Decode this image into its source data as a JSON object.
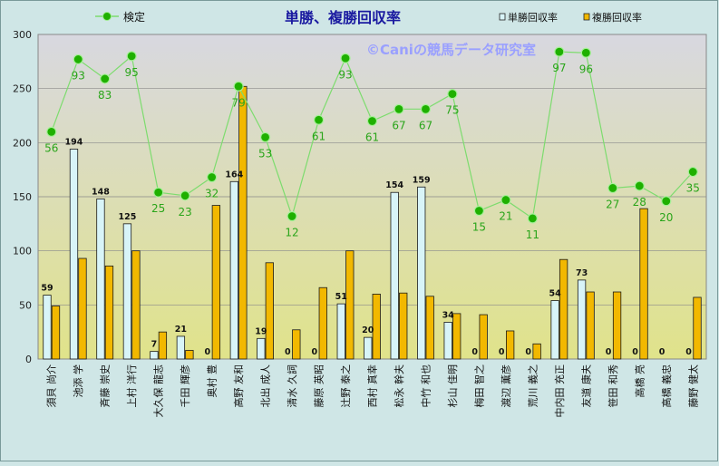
{
  "colors": {
    "background": "#cfe6e6",
    "plot_top": "#d8d8e0",
    "plot_bottom": "#e0e38a",
    "win_bar": "#d8f4f8",
    "place_bar": "#f2b800",
    "line": "#7ddc6e",
    "marker": "#1fb000",
    "line_label": "#2aa51a",
    "title": "#1a1aa0",
    "watermark": "#9aa0ff"
  },
  "chart_data": {
    "type": "bar",
    "title": "単勝、複勝回収率",
    "watermark": "©Caniの競馬データ研究室",
    "ylim": [
      0,
      300
    ],
    "yticks": [
      "0",
      "50",
      "100",
      "150",
      "200",
      "250",
      "300"
    ],
    "grid": true,
    "legend_left": "検定",
    "legend_right": [
      "単勝回収率",
      "複勝回収率"
    ],
    "categories": [
      "須貝 尚介",
      "池添 学",
      "斉藤 崇史",
      "上村 洋行",
      "大久保 龍志",
      "千田 輝彦",
      "奥村 豊",
      "高野 友和",
      "北出 成人",
      "清水 久詞",
      "藤原 英昭",
      "辻野 泰之",
      "西村 真幸",
      "松永 幹夫",
      "中竹 和也",
      "杉山 佳明",
      "梅田 智之",
      "渡辺 薫彦",
      "荒川 義之",
      "中内田 充正",
      "友道 康夫",
      "笹田 和秀",
      "高橋 亮",
      "高橋 義忠",
      "藤野 健太"
    ],
    "series": [
      {
        "name": "単勝回収率",
        "values": [
          59,
          194,
          148,
          125,
          7,
          21,
          0,
          164,
          19,
          0,
          0,
          51,
          20,
          154,
          159,
          34,
          0,
          0,
          0,
          54,
          73,
          0,
          0,
          0,
          0
        ],
        "labels": [
          "59",
          "194",
          "148",
          "125",
          "7",
          "21",
          "0",
          "164",
          "19",
          "0",
          "0",
          "51",
          "20",
          "154",
          "159",
          "34",
          "0",
          "0",
          "0",
          "54",
          "73",
          "0",
          "0",
          "0",
          "0"
        ]
      },
      {
        "name": "複勝回収率",
        "values": [
          49,
          93,
          86,
          100,
          25,
          8,
          142,
          252,
          89,
          27,
          66,
          100,
          60,
          61,
          58,
          42,
          41,
          26,
          14,
          92,
          62,
          62,
          139,
          0,
          57
        ]
      },
      {
        "name": "検定",
        "values": [
          210,
          277,
          259,
          280,
          154,
          151,
          168,
          252,
          205,
          132,
          221,
          278,
          220,
          231,
          231,
          245,
          137,
          147,
          130,
          284,
          283,
          158,
          160,
          146,
          173
        ],
        "labels": [
          "56",
          "93",
          "83",
          "95",
          "25",
          "23",
          "32",
          "79",
          "53",
          "12",
          "61",
          "93",
          "61",
          "67",
          "67",
          "75",
          "15",
          "21",
          "11",
          "97",
          "96",
          "27",
          "28",
          "20",
          "35"
        ]
      }
    ]
  }
}
